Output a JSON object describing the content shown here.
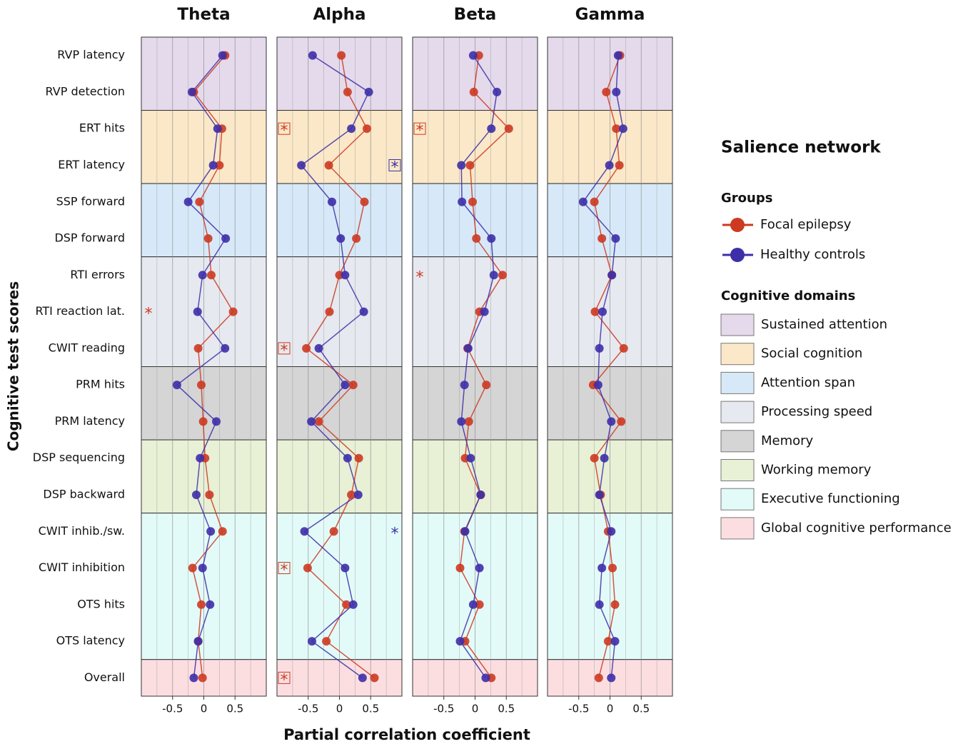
{
  "chart_data": [
    {
      "type": "line",
      "title": "Theta",
      "ylabel": "Cognitive test scores",
      "xlabel": "Partial correlation coefficient",
      "categories": [
        "RVP latency",
        "RVP detection",
        "ERT hits",
        "ERT latency",
        "SSP forward",
        "DSP forward",
        "RTI errors",
        "RTI reaction lat.",
        "CWIT reading",
        "PRM hits",
        "PRM latency",
        "DSP sequencing",
        "DSP backward",
        "CWIT inhib./sw.",
        "CWIT inhibition",
        "OTS hits",
        "OTS latency",
        "Overall"
      ],
      "xlim": [
        -1,
        1
      ],
      "xticks": [
        -0.5,
        0,
        0.5
      ],
      "xminor": [
        -0.75,
        -0.25,
        0.25,
        0.75
      ],
      "series": [
        {
          "name": "Focal epilepsy",
          "color": "#cc3a22",
          "values": [
            0.34,
            -0.16,
            0.29,
            0.25,
            -0.07,
            0.07,
            0.12,
            0.47,
            -0.09,
            -0.04,
            -0.01,
            0.02,
            0.09,
            0.3,
            -0.18,
            -0.04,
            -0.09,
            -0.02
          ]
        },
        {
          "name": "Healthy controls",
          "color": "#3d2fa8",
          "values": [
            0.3,
            -0.19,
            0.22,
            0.15,
            -0.25,
            0.35,
            -0.02,
            -0.1,
            0.34,
            -0.43,
            0.2,
            -0.06,
            -0.12,
            0.11,
            -0.02,
            0.1,
            -0.09,
            -0.16
          ]
        }
      ],
      "annotations": [
        {
          "category": "RTI reaction lat.",
          "series": "Focal epilepsy",
          "text": "*",
          "boxed": false
        }
      ]
    },
    {
      "type": "line",
      "title": "Alpha",
      "xlim": [
        -1,
        1
      ],
      "xticks": [
        -0.5,
        0,
        0.5
      ],
      "xminor": [
        -0.75,
        -0.25,
        0.25,
        0.75
      ],
      "series": [
        {
          "name": "Focal epilepsy",
          "color": "#cc3a22",
          "values": [
            0.03,
            0.13,
            0.44,
            -0.17,
            0.4,
            0.27,
            0.0,
            -0.16,
            -0.53,
            0.22,
            -0.33,
            0.31,
            0.19,
            -0.09,
            -0.51,
            0.11,
            -0.21,
            0.56
          ]
        },
        {
          "name": "Healthy controls",
          "color": "#3d2fa8",
          "values": [
            -0.43,
            0.47,
            0.19,
            -0.61,
            -0.12,
            0.02,
            0.09,
            0.39,
            -0.33,
            0.09,
            -0.45,
            0.13,
            0.3,
            -0.56,
            0.09,
            0.22,
            -0.44,
            0.37
          ]
        }
      ],
      "annotations": [
        {
          "category": "ERT hits",
          "series": "Focal epilepsy",
          "text": "*",
          "boxed": true
        },
        {
          "category": "ERT latency",
          "series": "Healthy controls",
          "text": "*",
          "boxed": true
        },
        {
          "category": "CWIT reading",
          "series": "Focal epilepsy",
          "text": "*",
          "boxed": true
        },
        {
          "category": "CWIT inhib./sw.",
          "series": "Healthy controls",
          "text": "*",
          "boxed": false
        },
        {
          "category": "CWIT inhibition",
          "series": "Focal epilepsy",
          "text": "*",
          "boxed": true
        },
        {
          "category": "Overall",
          "series": "Focal epilepsy",
          "text": "*",
          "boxed": true
        }
      ]
    },
    {
      "type": "line",
      "title": "Beta",
      "xlim": [
        -1,
        1
      ],
      "xticks": [
        -0.5,
        0,
        0.5
      ],
      "xminor": [
        -0.75,
        -0.25,
        0.25,
        0.75
      ],
      "series": [
        {
          "name": "Focal epilepsy",
          "color": "#cc3a22",
          "values": [
            0.06,
            -0.02,
            0.54,
            -0.08,
            -0.04,
            0.02,
            0.44,
            0.07,
            -0.12,
            0.18,
            -0.1,
            -0.16,
            0.09,
            -0.17,
            -0.24,
            0.07,
            -0.16,
            0.26
          ]
        },
        {
          "name": "Healthy controls",
          "color": "#3d2fa8",
          "values": [
            -0.03,
            0.35,
            0.26,
            -0.22,
            -0.21,
            0.26,
            0.3,
            0.15,
            -0.11,
            -0.17,
            -0.22,
            -0.07,
            0.09,
            -0.16,
            0.07,
            -0.03,
            -0.24,
            0.17
          ]
        }
      ],
      "annotations": [
        {
          "category": "ERT hits",
          "series": "Focal epilepsy",
          "text": "*",
          "boxed": true
        },
        {
          "category": "RTI errors",
          "series": "Focal epilepsy",
          "text": "*",
          "boxed": false
        }
      ]
    },
    {
      "type": "line",
      "title": "Gamma",
      "xlim": [
        -1,
        1
      ],
      "xticks": [
        -0.5,
        0,
        0.5
      ],
      "xminor": [
        -0.75,
        -0.25,
        0.25,
        0.75
      ],
      "series": [
        {
          "name": "Focal epilepsy",
          "color": "#cc3a22",
          "values": [
            0.16,
            -0.06,
            0.1,
            0.15,
            -0.25,
            -0.13,
            0.03,
            -0.24,
            0.22,
            -0.27,
            0.18,
            -0.25,
            -0.15,
            -0.03,
            0.04,
            0.08,
            -0.03,
            -0.18
          ]
        },
        {
          "name": "Healthy controls",
          "color": "#3d2fa8",
          "values": [
            0.13,
            0.1,
            0.21,
            -0.01,
            -0.43,
            0.09,
            0.03,
            -0.12,
            -0.17,
            -0.19,
            0.02,
            -0.09,
            -0.17,
            0.02,
            -0.13,
            -0.17,
            0.08,
            0.02
          ]
        }
      ],
      "annotations": []
    }
  ],
  "legend": {
    "title": "Salience network",
    "groups_title": "Groups",
    "domains_title": "Cognitive domains",
    "domains": [
      {
        "name": "Sustained attention",
        "color": "#e4daeb",
        "categories": [
          "RVP latency",
          "RVP detection"
        ]
      },
      {
        "name": "Social cognition",
        "color": "#fbe8c8",
        "categories": [
          "ERT hits",
          "ERT latency"
        ]
      },
      {
        "name": "Attention span",
        "color": "#d7e9f8",
        "categories": [
          "SSP forward",
          "DSP forward"
        ]
      },
      {
        "name": "Processing speed",
        "color": "#e6e9ef",
        "categories": [
          "RTI errors",
          "RTI reaction lat.",
          "CWIT reading"
        ]
      },
      {
        "name": "Memory",
        "color": "#d5d5d5",
        "categories": [
          "PRM hits",
          "PRM latency"
        ]
      },
      {
        "name": "Working memory",
        "color": "#e8f0d6",
        "categories": [
          "DSP sequencing",
          "DSP backward"
        ]
      },
      {
        "name": "Executive functioning",
        "color": "#e3fbf8",
        "categories": [
          "CWIT inhib./sw.",
          "CWIT inhibition",
          "OTS hits",
          "OTS latency"
        ]
      },
      {
        "name": "Global cognitive performance",
        "color": "#fcdee1",
        "categories": [
          "Overall"
        ]
      }
    ]
  }
}
